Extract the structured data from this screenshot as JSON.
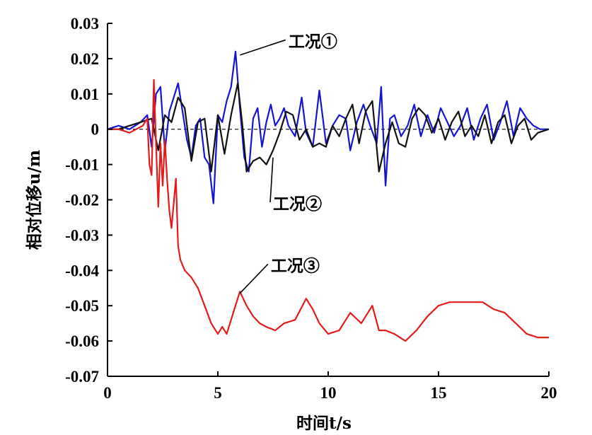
{
  "chart_data": {
    "type": "line",
    "xlabel": "时间t/s",
    "ylabel": "相对位移u/m",
    "xlim": [
      0,
      20
    ],
    "ylim": [
      -0.07,
      0.03
    ],
    "x_ticks": [
      "0",
      "5",
      "10",
      "15",
      "20"
    ],
    "y_ticks": [
      "0.03",
      "0.02",
      "0.01",
      "0",
      "-0.01",
      "-0.02",
      "-0.03",
      "-0.04",
      "-0.05",
      "-0.06",
      "-0.07"
    ],
    "zero_line": "dashed",
    "series": [
      {
        "name": "工况①",
        "color": "#1414d2",
        "x": [
          0,
          0.5,
          1,
          1.5,
          1.8,
          2,
          2.2,
          2.4,
          2.6,
          2.8,
          3,
          3.2,
          3.4,
          3.6,
          3.8,
          4,
          4.2,
          4.4,
          4.6,
          4.8,
          5,
          5.2,
          5.4,
          5.6,
          5.8,
          6,
          6.2,
          6.4,
          6.6,
          6.8,
          7,
          7.2,
          7.4,
          7.6,
          7.8,
          8,
          8.2,
          8.5,
          8.8,
          9,
          9.3,
          9.6,
          9.9,
          10.2,
          10.5,
          10.8,
          11,
          11.3,
          11.6,
          11.9,
          12.2,
          12.4,
          12.6,
          12.8,
          13,
          13.3,
          13.6,
          13.9,
          14.2,
          14.5,
          14.8,
          15.1,
          15.4,
          15.7,
          16,
          16.3,
          16.6,
          16.9,
          17.2,
          17.5,
          17.8,
          18.1,
          18.4,
          18.7,
          19,
          19.3,
          19.6,
          20
        ],
        "values": [
          0,
          0.001,
          0,
          0.002,
          0.004,
          -0.005,
          0.01,
          0.012,
          -0.006,
          0.005,
          0.009,
          0.013,
          0.005,
          -0.003,
          -0.008,
          0.001,
          0.003,
          -0.008,
          -0.01,
          -0.021,
          0.004,
          0.002,
          0.008,
          0.012,
          0.022,
          0.006,
          -0.008,
          -0.012,
          0.003,
          0.006,
          -0.005,
          0.002,
          0.007,
          0.001,
          0.003,
          0.006,
          0.001,
          -0.002,
          0.009,
          -0.001,
          -0.005,
          0.011,
          -0.004,
          0.001,
          0.004,
          0.003,
          -0.006,
          0.002,
          0.007,
          0.001,
          -0.004,
          0.012,
          -0.016,
          0.003,
          0.004,
          -0.002,
          0.001,
          0.007,
          -0.002,
          0.004,
          -0.001,
          0.006,
          0.002,
          -0.002,
          0.001,
          0.006,
          -0.003,
          0.003,
          0.007,
          -0.003,
          0.002,
          0.008,
          -0.002,
          0.006,
          0.003,
          0.001,
          0,
          0
        ]
      },
      {
        "name": "工况②",
        "color": "#111111",
        "x": [
          0,
          0.5,
          1,
          1.5,
          2,
          2.3,
          2.6,
          2.9,
          3.2,
          3.5,
          3.8,
          4.1,
          4.4,
          4.7,
          5,
          5.3,
          5.6,
          5.9,
          6.1,
          6.3,
          6.6,
          6.9,
          7.2,
          7.5,
          7.8,
          8.1,
          8.4,
          8.7,
          9,
          9.3,
          9.6,
          9.9,
          10.2,
          10.5,
          10.8,
          11.1,
          11.4,
          11.7,
          12,
          12.3,
          12.6,
          12.9,
          13.2,
          13.5,
          13.8,
          14.1,
          14.4,
          14.7,
          15,
          15.3,
          15.6,
          15.9,
          16.2,
          16.5,
          16.8,
          17.1,
          17.4,
          17.7,
          18,
          18.3,
          18.6,
          18.9,
          19.2,
          19.5,
          20
        ],
        "values": [
          0,
          0,
          0.001,
          0.002,
          0.003,
          -0.006,
          0.004,
          0.002,
          0.009,
          0.006,
          -0.009,
          0.002,
          0.003,
          -0.012,
          0.004,
          -0.007,
          0.004,
          0.013,
          0.002,
          -0.012,
          -0.009,
          -0.008,
          -0.01,
          -0.006,
          -0.001,
          0.005,
          0.004,
          -0.003,
          0,
          -0.005,
          -0.004,
          -0.005,
          0.001,
          -0.002,
          0.003,
          0.007,
          -0.004,
          0.005,
          0.008,
          -0.012,
          -0.004,
          0.002,
          -0.004,
          -0.005,
          0.003,
          0.006,
          0.004,
          -0.001,
          0.003,
          -0.003,
          0.002,
          0.005,
          -0.002,
          0.001,
          -0.002,
          0.004,
          -0.004,
          0.002,
          0.004,
          -0.004,
          0.001,
          0.003,
          -0.003,
          -0.001,
          0
        ]
      },
      {
        "name": "工况③",
        "color": "#e31b1b",
        "x": [
          0,
          0.5,
          1,
          1.3,
          1.6,
          1.8,
          1.9,
          2,
          2.1,
          2.2,
          2.3,
          2.4,
          2.5,
          2.6,
          2.7,
          2.8,
          2.9,
          3,
          3.1,
          3.2,
          3.3,
          3.5,
          3.8,
          4.1,
          4.4,
          4.7,
          5,
          5.2,
          5.4,
          5.7,
          6,
          6.3,
          6.6,
          6.9,
          7.2,
          7.6,
          8,
          8.5,
          9,
          9.3,
          9.6,
          10,
          10.5,
          11,
          11.5,
          12,
          12.3,
          12.6,
          13,
          13.5,
          14,
          14.5,
          15,
          15.5,
          16,
          16.5,
          17,
          17.5,
          18,
          18.5,
          19,
          19.5,
          20
        ],
        "values": [
          0,
          0,
          -0.001,
          0,
          0.001,
          0.003,
          -0.01,
          -0.013,
          0.014,
          -0.004,
          -0.022,
          -0.004,
          -0.016,
          -0.003,
          -0.014,
          -0.023,
          -0.028,
          -0.021,
          -0.014,
          -0.033,
          -0.037,
          -0.04,
          -0.042,
          -0.045,
          -0.05,
          -0.055,
          -0.058,
          -0.056,
          -0.058,
          -0.052,
          -0.046,
          -0.05,
          -0.053,
          -0.055,
          -0.056,
          -0.057,
          -0.055,
          -0.054,
          -0.048,
          -0.051,
          -0.055,
          -0.058,
          -0.057,
          -0.052,
          -0.055,
          -0.05,
          -0.057,
          -0.057,
          -0.058,
          -0.06,
          -0.057,
          -0.053,
          -0.05,
          -0.049,
          -0.049,
          -0.049,
          -0.049,
          -0.051,
          -0.052,
          -0.055,
          -0.058,
          -0.059,
          -0.059
        ]
      }
    ],
    "annotations": [
      {
        "text": "工况①",
        "series": 0,
        "at_x": 6.0,
        "at_y": 0.021,
        "label_x": 8.2,
        "label_y": 0.0245
      },
      {
        "text": "工况②",
        "series": 1,
        "at_x": 7.5,
        "at_y": -0.008,
        "label_x": 7.5,
        "label_y": -0.0215
      },
      {
        "text": "工况③",
        "series": 2,
        "at_x": 6.0,
        "at_y": -0.0465,
        "label_x": 7.4,
        "label_y": -0.039
      }
    ]
  }
}
